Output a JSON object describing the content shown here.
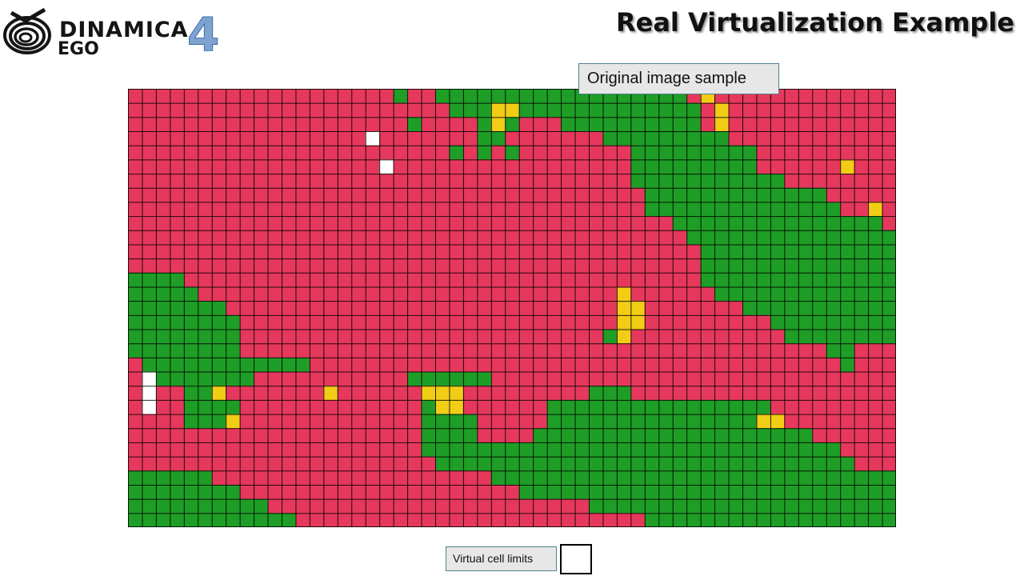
{
  "header": {
    "logo_name": "DINAMICA",
    "logo_sub": "EGO",
    "logo_version": "4",
    "slide_title": "Real Virtualization Example"
  },
  "figure": {
    "callout_original": "Original image sample",
    "legend_label": "Virtual cell limits",
    "cols": 55,
    "rows": 31,
    "colors": {
      "R": "#e6385c",
      "G": "#1e9e26",
      "Y": "#f2cd16",
      "W": "#ffffff",
      "grid": "#000000"
    },
    "map": [
      "RRRRRRRRRRRRRRRRRRRGRRGGGGGGGGGGGGGGGGGGRYRRRRRRRRRRRRR",
      "RRRRRRRRRRRRRRRRRRRRRRRGGGYYGGGGGGGGGGGGGRYRRRRRRRRRRRR",
      "RRRRRRRRRRRRRRRRRRRRGRRRRGYGRRRGGGGGGGGGGRYRRRRRRRRRRRR",
      "RRRRRRRRRRRRRRRRRWRRRRRRRGGRRRRRRRGGGGGGGGGRRRRRRRRRRRR",
      "RRRRRRRRRRRRRRRRRRRRRRRGRGRGRRRRRRRRGGGGGGGGGRRRRRRRRRR",
      "RRRRRRRRRRRRRRRRRRWRRRRRRRRRRRRRRRRRGGGGGGGGGRRRRRRYRRR",
      "RRRRRRRRRRRRRRRRRRRRRRRRRRRRRRRRRRRRGGGGGGGGGGGRRRRRRRR",
      "RRRRRRRRRRRRRRRRRRRRRRRRRRRRRRRRRRRRRGGGGGGGGGGGGGRRRRR",
      "RRRRRRRRRRRRRRRRRRRRRRRRRRRRRRRRRRRRRGGGGGGGGGGGGGGRRYR",
      "RRRRRRRRRRRRRRRRRRRRRRRRRRRRRRRRRRRRRRRGGGGGGGGGGGGGGGR",
      "RRRRRRRRRRRRRRRRRRRRRRRRRRRRRRRRRRRRRRRRGGGGGGGGGGGGGGG",
      "RRRRRRRRRRRRRRRRRRRRRRRRRRRRRRRRRRRRRRRRRGGGGGGGGGGGGGG",
      "RRRRRRRRRRRRRRRRRRRRRRRRRRRRRRRRRRRRRRRRRGGGGGGGGGGGGGG",
      "GGGGRRRRRRRRRRRRRRRRRRRRRRRRRRRRRRRRRRRRRGGGGGGGGGGGGGG",
      "GGGGGRRRRRRRRRRRRRRRRRRRRRRRRRRRRRRYRRRRRRGGGGGGGGGGGGG",
      "GGGGGGGRRRRRRRRRRRRRRRRRRRRRRRRRRRRYYRRRRRRRGGGGGGGGGGG",
      "GGGGGGGGRRRRRRRRRRRRRRRRRRRRRRRRRRRYYRRRRRRRRRGGGGGGGGG",
      "GGGGGGGGRRRRRRRRRRRRRRRRRRRRRRRRRRGYRRRRRRRRRRRGGGGGGGG",
      "GGGGGGGGRRRRRRRRRRRRRRRRRRRRRRRRRRRRRRRRRRRRRRRRRRGGRRR",
      "RGGGGGGGGGGGGRRRRRRRRRRRRRRRRRRRRRRRRRRRRRRRRRRRRRRGRRR",
      "RWGGGGGGGRRRRRRRRRRRGGGGGGRRRRRRRRRRRRRRRRRRRRRRRRRRRRR",
      "RWRRGGYRRRRRRRYRRRRRRYYYRRRRRRRRRGGGRRRRRRRRRRRRRRRRRRR",
      "RWRRGGGGRRRRRRRRRRRRRGYYRRRRRRGGGGGGGGGGGGGGGGRRRRRRRRR",
      "RRRRGGGYRRRRRRRRRRRRRGGGGRRRRRGGGGGGGGGGGGGGGYYRRRRRRRR",
      "RRRRRRRRRRRRRRRRRRRRRGGGGRRRRGGGGGGGGGGGGGGGGGGGGRRRRRR",
      "RRRRRRRRRRRRRRRRRRRRRGGGGGGGGGGGGGGGGGGGGGGGGGGGGGGRRRR",
      "RRRRRRRRRRRRRRRRRRRRRRGGGGGGGGGGGGGGGGGGGGGGGGGGGGGGRRR",
      "GGGGGGRRRRRRRRRRRRRRRRRRRRGGGGGGGGGGGGGGGGGGGGGGGGGGGGG",
      "GGGGGGGGRRRRRRRRRRRRRRRRRRRRGGGGGGGGGGGGGGGGGGGGGGGGGGG",
      "GGGGGGGGGGRRRRRRRRRRRRRRRRRRRRRRRGGGGGGGGGGGGGGGGGGGGGG",
      "GGGGGGGGGGGGRRRRRRRRRRRRRRRRRRRRRRRRRGGGGGGGGGGGGGGGGGG"
    ]
  }
}
